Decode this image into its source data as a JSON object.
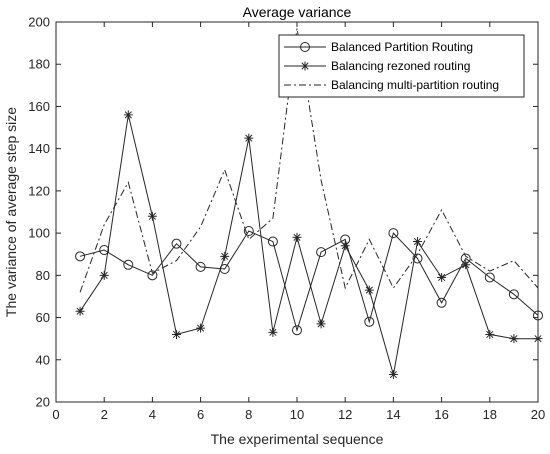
{
  "chart_data": {
    "type": "line",
    "title": "Average variance",
    "xlabel": "The experimental sequence",
    "ylabel": "The variance of average step size",
    "xlim": [
      0,
      20
    ],
    "ylim": [
      20,
      200
    ],
    "xticks": [
      0,
      2,
      4,
      6,
      8,
      10,
      12,
      14,
      16,
      18,
      20
    ],
    "yticks": [
      20,
      40,
      60,
      80,
      100,
      120,
      140,
      160,
      180,
      200
    ],
    "grid": false,
    "legend_position": "top-right",
    "x": [
      1,
      2,
      3,
      4,
      5,
      6,
      7,
      8,
      9,
      10,
      11,
      12,
      13,
      14,
      15,
      16,
      17,
      18,
      19,
      20
    ],
    "series": [
      {
        "name": "Balanced Partition Routing",
        "marker": "circle",
        "line": "solid",
        "color": "#262626",
        "values": [
          89,
          92,
          85,
          80,
          95,
          84,
          83,
          101,
          96,
          54,
          91,
          97,
          58,
          100,
          88,
          67,
          88,
          79,
          71,
          61
        ]
      },
      {
        "name": "Balancing rezoned routing",
        "marker": "asterisk",
        "line": "solid",
        "color": "#262626",
        "values": [
          63,
          80,
          156,
          108,
          52,
          55,
          89,
          145,
          53,
          98,
          57,
          94,
          73,
          33,
          96,
          79,
          85,
          52,
          50,
          50
        ]
      },
      {
        "name": "Balancing multi-partition routing",
        "marker": "none",
        "line": "dashdot",
        "color": "#262626",
        "values": [
          72,
          104,
          124,
          81,
          87,
          103,
          130,
          97,
          107,
          197,
          125,
          74,
          97,
          74,
          90,
          111,
          89,
          82,
          87,
          74
        ]
      }
    ]
  }
}
